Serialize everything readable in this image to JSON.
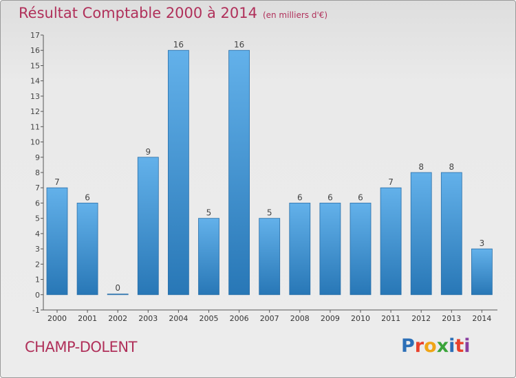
{
  "title": "Résultat Comptable 2000 à 2014",
  "subtitle": "(en milliers d'€)",
  "commune": "CHAMP-DOLENT",
  "logo": {
    "text": "Proxiti",
    "colors": [
      "#2c6fb7",
      "#e8412c",
      "#f0a516",
      "#3aa43a",
      "#2c6fb7",
      "#e8412c",
      "#8a3fa0"
    ]
  },
  "chart_data": {
    "type": "bar",
    "title": "Résultat Comptable 2000 à 2014",
    "ylabel": "en milliers d'€",
    "categories": [
      "2000",
      "2001",
      "2002",
      "2003",
      "2004",
      "2005",
      "2006",
      "2007",
      "2008",
      "2009",
      "2010",
      "2011",
      "2012",
      "2013",
      "2014"
    ],
    "values": [
      7,
      6,
      0,
      9,
      16,
      5,
      16,
      5,
      6,
      6,
      6,
      7,
      8,
      8,
      3
    ],
    "ylim": [
      -1,
      17
    ],
    "yticks": [
      -1,
      0,
      1,
      2,
      3,
      4,
      5,
      6,
      7,
      8,
      9,
      10,
      11,
      12,
      13,
      14,
      15,
      16,
      17
    ],
    "bar_color_top": "#63b1ea",
    "bar_color_bottom": "#2877b6",
    "grid": false
  }
}
